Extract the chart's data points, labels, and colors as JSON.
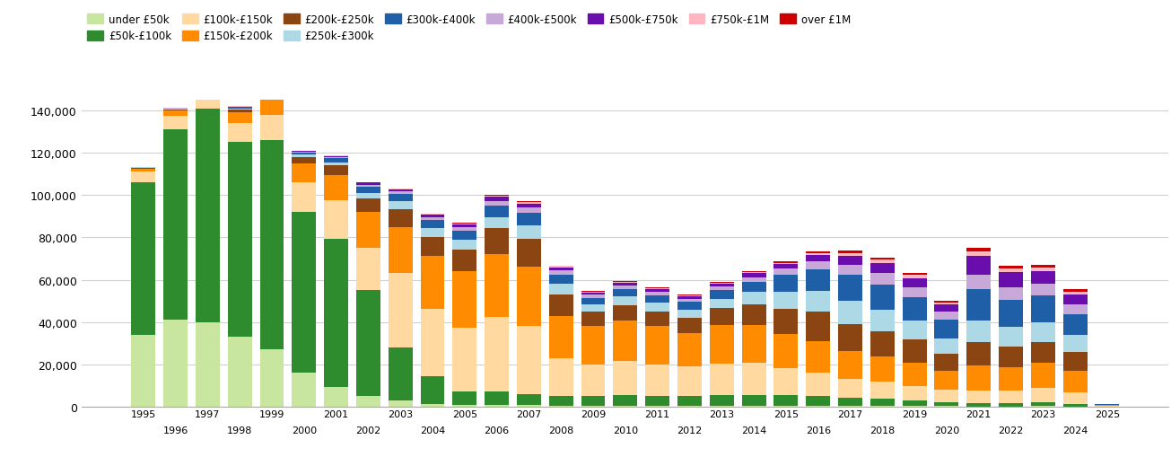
{
  "years": [
    1995,
    1996,
    1997,
    1998,
    1999,
    2000,
    2001,
    2002,
    2003,
    2004,
    2005,
    2006,
    2007,
    2008,
    2009,
    2010,
    2011,
    2012,
    2013,
    2014,
    2015,
    2016,
    2017,
    2018,
    2019,
    2020,
    2021,
    2022,
    2023,
    2024,
    2025
  ],
  "categories": [
    "under £50k",
    "£50k-£100k",
    "£100k-£150k",
    "£150k-£200k",
    "£200k-£250k",
    "£250k-£300k",
    "£300k-£400k",
    "£400k-£500k",
    "£500k-£750k",
    "£750k-£1M",
    "over £1M"
  ],
  "colors": [
    "#c8e6a0",
    "#2e8b2e",
    "#ffd9a0",
    "#ff8c00",
    "#8b4513",
    "#add8e6",
    "#1e5fa8",
    "#c8a8d8",
    "#6a0dad",
    "#ffb6c1",
    "#cc0000"
  ],
  "data": {
    "under £50k": [
      34000,
      41000,
      40000,
      33000,
      27000,
      16000,
      9500,
      5000,
      3000,
      1200,
      700,
      700,
      600,
      500,
      500,
      500,
      500,
      450,
      450,
      450,
      400,
      400,
      350,
      300,
      250,
      200,
      150,
      150,
      180,
      150,
      50
    ],
    "£50k-£100k": [
      72000,
      90000,
      101000,
      92000,
      99000,
      76000,
      70000,
      50000,
      25000,
      13000,
      6500,
      6500,
      5500,
      4500,
      4500,
      5000,
      4500,
      4500,
      5000,
      5200,
      5000,
      4500,
      3800,
      3400,
      2500,
      1800,
      1500,
      1400,
      2000,
      1200,
      100
    ],
    "£100k-£150k": [
      5000,
      6500,
      8000,
      9000,
      12000,
      14000,
      18000,
      20000,
      35000,
      32000,
      30000,
      35000,
      32000,
      18000,
      15000,
      16000,
      15000,
      14000,
      15000,
      15000,
      13000,
      11000,
      9000,
      8000,
      7000,
      6000,
      6000,
      6000,
      6500,
      5500,
      200
    ],
    "£150k-£200k": [
      1500,
      2500,
      3500,
      5000,
      7000,
      9000,
      12000,
      17000,
      22000,
      25000,
      27000,
      30000,
      28000,
      20000,
      18000,
      19000,
      18000,
      16000,
      18000,
      18000,
      16000,
      15000,
      13000,
      12000,
      11000,
      9000,
      12000,
      11000,
      12000,
      10000,
      250
    ],
    "£200k-£250k": [
      400,
      600,
      1000,
      1500,
      2200,
      3000,
      4500,
      6500,
      8500,
      9000,
      10000,
      12000,
      13000,
      10000,
      7000,
      7500,
      7000,
      7000,
      8000,
      9500,
      12000,
      14000,
      13000,
      12000,
      11000,
      8000,
      11000,
      10000,
      10000,
      9000,
      200
    ],
    "£250k-£300k": [
      200,
      250,
      350,
      500,
      700,
      1000,
      1500,
      2500,
      3500,
      4000,
      4500,
      5500,
      6500,
      5000,
      3500,
      4000,
      4000,
      4000,
      4500,
      6000,
      8000,
      10000,
      11000,
      10000,
      9000,
      7000,
      10000,
      9000,
      9000,
      8000,
      150
    ],
    "£300k-£400k": [
      150,
      200,
      300,
      500,
      700,
      1000,
      1800,
      2800,
      3500,
      4000,
      4500,
      5500,
      6000,
      4500,
      3000,
      3500,
      3500,
      3500,
      4000,
      5000,
      8000,
      10000,
      12000,
      12000,
      11000,
      9000,
      15000,
      13000,
      13000,
      10000,
      150
    ],
    "£400k-£500k": [
      80,
      100,
      140,
      200,
      320,
      450,
      650,
      950,
      1100,
      1400,
      1700,
      2100,
      2400,
      1900,
      1400,
      1700,
      1700,
      1600,
      1700,
      2100,
      2800,
      3800,
      4800,
      5300,
      4800,
      3800,
      6800,
      5800,
      5300,
      4300,
      80
    ],
    "£500k-£750k": [
      60,
      80,
      110,
      170,
      250,
      360,
      500,
      750,
      950,
      1100,
      1350,
      1750,
      1900,
      1450,
      1150,
      1350,
      1350,
      1250,
      1350,
      1750,
      2100,
      2900,
      4300,
      4800,
      4300,
      3350,
      8700,
      7200,
      6200,
      4800,
      80
    ],
    "£750k-£1M": [
      25,
      35,
      45,
      70,
      90,
      130,
      180,
      270,
      380,
      420,
      480,
      620,
      680,
      530,
      430,
      480,
      480,
      430,
      480,
      580,
      760,
      960,
      1450,
      1550,
      1350,
      1150,
      2400,
      1950,
      1750,
      1450,
      50
    ],
    "over £1M": [
      15,
      25,
      35,
      55,
      75,
      95,
      120,
      185,
      230,
      280,
      330,
      430,
      480,
      380,
      280,
      330,
      330,
      280,
      330,
      430,
      580,
      760,
      960,
      1060,
      960,
      860,
      1450,
      1260,
      1160,
      960,
      30
    ]
  },
  "ylim": [
    0,
    145000
  ],
  "yticks": [
    0,
    20000,
    40000,
    60000,
    80000,
    100000,
    120000,
    140000
  ],
  "background_color": "#ffffff",
  "grid_color": "#d0d0d0"
}
